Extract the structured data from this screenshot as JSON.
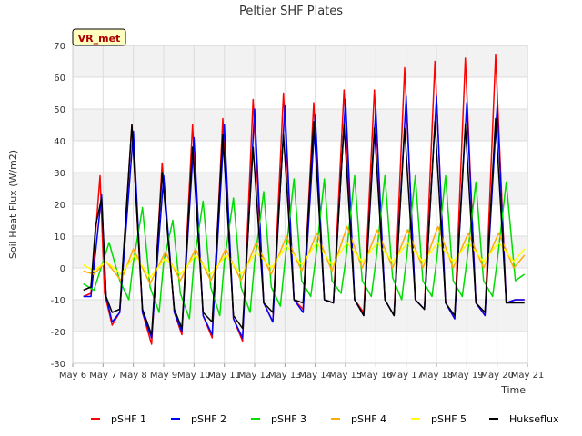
{
  "chart_data": {
    "type": "line",
    "title": "Peltier SHF Plates",
    "xlabel": "Time",
    "ylabel": "Soil Heat Flux (W/m2)",
    "ylim": [
      -30,
      70
    ],
    "yticks": [
      -30,
      -20,
      -10,
      0,
      10,
      20,
      30,
      40,
      50,
      60,
      70
    ],
    "xlim": [
      6,
      21
    ],
    "xticks": [
      6,
      7,
      8,
      9,
      10,
      11,
      12,
      13,
      14,
      15,
      16,
      17,
      18,
      19,
      20,
      21
    ],
    "xtick_labels": [
      "May 6",
      "May 7",
      "May 8",
      "May 9",
      "May 10",
      "May 11",
      "May 12",
      "May 13",
      "May 14",
      "May 15",
      "May 16",
      "May 17",
      "May 18",
      "May 19",
      "May 20",
      "May 21"
    ],
    "annotation": "VR_met",
    "grid": true,
    "legend_position": "bottom",
    "series": [
      {
        "name": "pSHF 1",
        "color": "#ff0000",
        "x": [
          6.35,
          6.6,
          6.9,
          7.05,
          7.3,
          7.55,
          7.95,
          8.3,
          8.6,
          8.95,
          9.35,
          9.6,
          9.95,
          10.3,
          10.6,
          10.95,
          11.3,
          11.6,
          11.95,
          12.3,
          12.6,
          12.95,
          13.3,
          13.6,
          13.95,
          14.3,
          14.6,
          14.95,
          15.3,
          15.6,
          15.95,
          16.3,
          16.6,
          16.95,
          17.3,
          17.6,
          17.95,
          18.3,
          18.6,
          18.95,
          19.3,
          19.6,
          19.95,
          20.3,
          20.6,
          20.9
        ],
        "y": [
          -9,
          -8,
          29,
          -8,
          -18,
          -14,
          45,
          -14,
          -24,
          33,
          -14,
          -21,
          45,
          -15,
          -22,
          47,
          -16,
          -23,
          53,
          -11,
          -17,
          55,
          -10,
          -13,
          52,
          -10,
          -11,
          56,
          -10,
          -14,
          56,
          -10,
          -15,
          63,
          -10,
          -13,
          65,
          -11,
          -16,
          66,
          -11,
          -15,
          67,
          -11,
          -10,
          -10
        ]
      },
      {
        "name": "pSHF 2",
        "color": "#0000ff",
        "x": [
          6.35,
          6.6,
          6.95,
          7.1,
          7.3,
          7.55,
          8.0,
          8.3,
          8.6,
          9.0,
          9.35,
          9.6,
          10.0,
          10.3,
          10.6,
          11.0,
          11.3,
          11.6,
          12.0,
          12.3,
          12.6,
          13.0,
          13.3,
          13.6,
          14.0,
          14.3,
          14.6,
          15.0,
          15.3,
          15.6,
          16.0,
          16.3,
          16.6,
          17.0,
          17.3,
          17.6,
          18.0,
          18.3,
          18.6,
          19.0,
          19.3,
          19.6,
          20.0,
          20.3,
          20.6,
          20.9
        ],
        "y": [
          -9,
          -9,
          23,
          -9,
          -17,
          -14,
          43,
          -14,
          -22,
          29,
          -14,
          -20,
          41,
          -15,
          -21,
          45,
          -16,
          -22,
          50,
          -11,
          -17,
          51,
          -10,
          -14,
          48,
          -10,
          -11,
          53,
          -10,
          -15,
          50,
          -10,
          -15,
          54,
          -10,
          -13,
          54,
          -11,
          -16,
          52,
          -11,
          -15,
          51,
          -11,
          -10,
          -10
        ]
      },
      {
        "name": "pSHF 3",
        "color": "#00dd00",
        "x": [
          6.35,
          6.7,
          7.0,
          7.2,
          7.55,
          7.85,
          8.0,
          8.3,
          8.55,
          8.85,
          9.0,
          9.3,
          9.55,
          9.85,
          10.0,
          10.3,
          10.55,
          10.85,
          11.0,
          11.3,
          11.55,
          11.85,
          12.0,
          12.3,
          12.55,
          12.85,
          13.0,
          13.3,
          13.55,
          13.85,
          14.0,
          14.3,
          14.55,
          14.85,
          15.0,
          15.3,
          15.55,
          15.85,
          16.0,
          16.3,
          16.55,
          16.85,
          17.0,
          17.3,
          17.55,
          17.85,
          18.0,
          18.3,
          18.55,
          18.85,
          19.0,
          19.3,
          19.55,
          19.85,
          20.0,
          20.3,
          20.6,
          20.9
        ],
        "y": [
          -5,
          -7,
          2,
          8,
          -4,
          -10,
          2,
          19,
          -6,
          -14,
          2,
          15,
          -8,
          -16,
          2,
          21,
          -6,
          -15,
          2,
          22,
          -6,
          -14,
          2,
          24,
          -6,
          -12,
          2,
          28,
          -4,
          -9,
          2,
          28,
          -4,
          -8,
          2,
          29,
          -4,
          -9,
          2,
          29,
          -3,
          -10,
          2,
          29,
          -4,
          -9,
          2,
          29,
          -4,
          -9,
          2,
          27,
          -4,
          -9,
          2,
          27,
          -4,
          -2
        ]
      },
      {
        "name": "pSHF 4",
        "color": "#ffaa00",
        "x": [
          6.35,
          6.7,
          7.1,
          7.6,
          8.0,
          8.55,
          9.05,
          9.55,
          10.05,
          10.55,
          11.05,
          11.55,
          12.05,
          12.55,
          13.05,
          13.55,
          14.05,
          14.55,
          15.05,
          15.55,
          16.05,
          16.55,
          17.05,
          17.55,
          18.05,
          18.55,
          19.05,
          19.55,
          20.05,
          20.55,
          20.9
        ],
        "y": [
          -1,
          -2,
          2,
          -4,
          6,
          -5,
          5,
          -4,
          6,
          -4,
          6,
          -4,
          8,
          -2,
          10,
          -1,
          11,
          -1,
          13,
          0,
          12,
          0,
          12,
          0,
          13,
          0,
          11,
          0,
          11,
          0,
          4
        ]
      },
      {
        "name": "pSHF 5",
        "color": "#ffff00",
        "x": [
          6.35,
          6.7,
          7.1,
          7.6,
          8.05,
          8.55,
          9.05,
          9.55,
          10.05,
          10.55,
          11.05,
          11.55,
          12.05,
          12.55,
          13.05,
          13.55,
          14.05,
          14.55,
          15.05,
          15.55,
          16.05,
          16.55,
          17.05,
          17.55,
          18.05,
          18.55,
          19.05,
          19.55,
          20.05,
          20.55,
          20.9
        ],
        "y": [
          1,
          -1,
          2,
          -2,
          4,
          -3,
          3,
          -2,
          4,
          -2,
          4,
          -2,
          5,
          0,
          7,
          1,
          8,
          1,
          8,
          2,
          8,
          2,
          8,
          2,
          8,
          2,
          8,
          2,
          8,
          2,
          6
        ]
      },
      {
        "name": "Hukseflux",
        "color": "#000000",
        "x": [
          6.35,
          6.6,
          6.75,
          6.95,
          7.1,
          7.3,
          7.55,
          7.95,
          8.3,
          8.6,
          8.95,
          9.35,
          9.6,
          9.95,
          10.3,
          10.6,
          10.95,
          11.3,
          11.6,
          11.95,
          12.3,
          12.6,
          12.95,
          13.3,
          13.6,
          13.95,
          14.3,
          14.6,
          14.95,
          15.3,
          15.6,
          15.95,
          16.3,
          16.6,
          16.95,
          17.3,
          17.6,
          17.95,
          18.3,
          18.6,
          18.95,
          19.3,
          19.6,
          19.95,
          20.3,
          20.6,
          20.9
        ],
        "y": [
          -7,
          -6,
          13,
          22,
          -9,
          -14,
          -13,
          45,
          -13,
          -21,
          30,
          -13,
          -19,
          38,
          -14,
          -17,
          42,
          -15,
          -19,
          38,
          -11,
          -14,
          42,
          -10,
          -11,
          46,
          -10,
          -11,
          45,
          -10,
          -15,
          44,
          -10,
          -15,
          44,
          -10,
          -13,
          46,
          -11,
          -15,
          45,
          -11,
          -14,
          47,
          -11,
          -11,
          -11
        ]
      }
    ]
  }
}
